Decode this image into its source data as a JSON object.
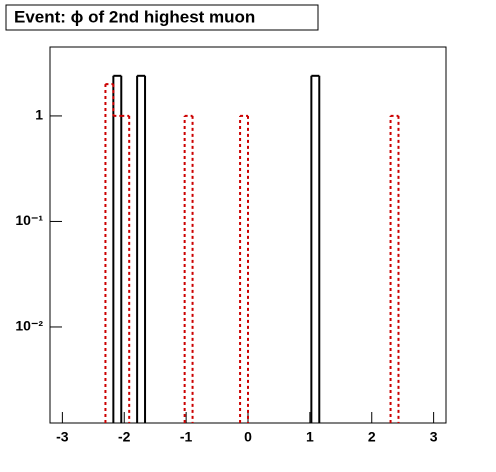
{
  "chart_data": {
    "type": "histogram",
    "title": "Event: ϕ of 2nd highest muon",
    "bins": [
      -3.2,
      -3.072,
      -2.944,
      -2.816,
      -2.688,
      -2.56,
      -2.432,
      -2.304,
      -2.176,
      -2.048,
      -1.92,
      -1.792,
      -1.664,
      -1.536,
      -1.408,
      -1.28,
      -1.152,
      -1.024,
      -0.896,
      -0.768,
      -0.64,
      -0.512,
      -0.384,
      -0.256,
      -0.128,
      0,
      0.128,
      0.256,
      0.384,
      0.512,
      0.64,
      0.768,
      0.896,
      1.024,
      1.152,
      1.28,
      1.408,
      1.536,
      1.664,
      1.792,
      1.92,
      2.048,
      2.176,
      2.304,
      2.432,
      2.56,
      2.688,
      2.816,
      2.944,
      3.072,
      3.2
    ],
    "series": [
      {
        "color": "#000000",
        "dashed": false,
        "values": [
          0,
          0,
          0,
          0,
          0,
          0,
          0,
          0,
          2.4,
          0,
          0,
          2.4,
          0,
          0,
          0,
          0,
          0,
          0,
          0,
          0,
          0,
          0,
          0,
          0,
          0,
          0,
          0,
          0,
          0,
          0,
          0,
          0,
          0,
          2.4,
          0,
          0,
          0,
          0,
          0,
          0,
          0,
          0,
          0,
          0,
          0,
          0,
          0,
          0,
          0,
          0
        ]
      },
      {
        "color": "#cc0000",
        "dashed": true,
        "values": [
          0,
          0,
          0,
          0,
          0,
          0,
          0,
          2,
          1,
          1,
          0,
          0,
          0,
          0,
          0,
          0,
          0,
          1,
          0,
          0,
          0,
          0,
          0,
          0,
          1,
          0,
          0,
          0,
          0,
          0,
          0,
          0,
          0,
          0,
          0,
          0,
          0,
          0,
          0,
          0,
          0,
          0,
          0,
          1,
          0,
          0,
          0,
          0,
          0,
          0
        ]
      }
    ],
    "xlim": [
      -3.2,
      3.2
    ],
    "xticks": [
      -3,
      -2,
      -1,
      0,
      1,
      2,
      3
    ],
    "ylim": [
      0.00123,
      4.5
    ],
    "ylog": true,
    "yticks": [
      {
        "value": 0.01,
        "label": "10⁻²"
      },
      {
        "value": 0.1,
        "label": "10⁻¹"
      },
      1
    ]
  }
}
